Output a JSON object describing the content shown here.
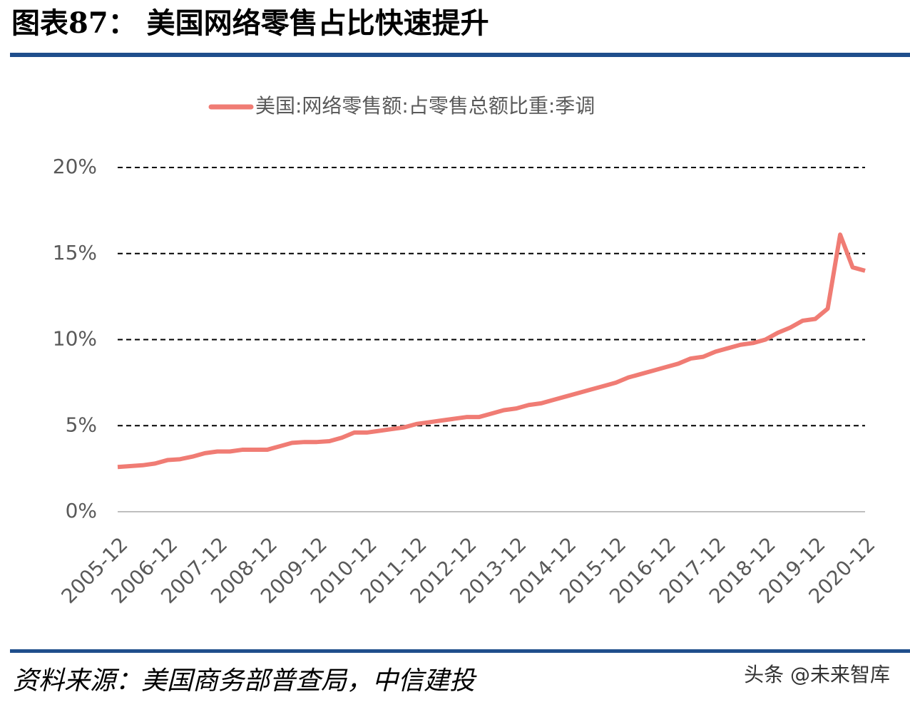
{
  "chart_data": {
    "type": "line",
    "title": "图表87：  美国网络零售占比快速提升",
    "source": "资料来源：美国商务部普查局，中信建投",
    "watermark": "头条 @未来智库",
    "categories": [
      "2005-12",
      null,
      null,
      null,
      "2006-12",
      null,
      null,
      null,
      "2007-12",
      null,
      null,
      null,
      "2008-12",
      null,
      null,
      null,
      "2009-12",
      null,
      null,
      null,
      "2010-12",
      null,
      null,
      null,
      "2011-12",
      null,
      null,
      null,
      "2012-12",
      null,
      null,
      null,
      "2013-12",
      null,
      null,
      null,
      "2014-12",
      null,
      null,
      null,
      "2015-12",
      null,
      null,
      null,
      "2016-12",
      null,
      null,
      null,
      "2017-12",
      null,
      null,
      null,
      "2018-12",
      null,
      null,
      null,
      "2019-12",
      null,
      null,
      null,
      "2020-12"
    ],
    "series": [
      {
        "name": "美国:网络零售额:占零售总额比重:季调",
        "color": "#f07c74",
        "values": [
          2.6,
          2.65,
          2.7,
          2.8,
          3.0,
          3.05,
          3.2,
          3.4,
          3.5,
          3.5,
          3.6,
          3.6,
          3.6,
          3.8,
          4.0,
          4.05,
          4.05,
          4.1,
          4.3,
          4.6,
          4.6,
          4.7,
          4.8,
          4.9,
          5.1,
          5.2,
          5.3,
          5.4,
          5.5,
          5.5,
          5.7,
          5.9,
          6.0,
          6.2,
          6.3,
          6.5,
          6.7,
          6.9,
          7.1,
          7.3,
          7.5,
          7.8,
          8.0,
          8.2,
          8.4,
          8.6,
          8.9,
          9.0,
          9.3,
          9.5,
          9.7,
          9.8,
          10.0,
          10.4,
          10.7,
          11.1,
          11.2,
          11.8,
          16.1,
          14.2,
          14.0
        ]
      }
    ],
    "ylim": [
      0,
      20
    ],
    "yticks": [
      {
        "value": 0,
        "label": "0%"
      },
      {
        "value": 5,
        "label": "5%"
      },
      {
        "value": 10,
        "label": "10%"
      },
      {
        "value": 15,
        "label": "15%"
      },
      {
        "value": 20,
        "label": "20%"
      }
    ],
    "grid": true,
    "legend": "top"
  }
}
